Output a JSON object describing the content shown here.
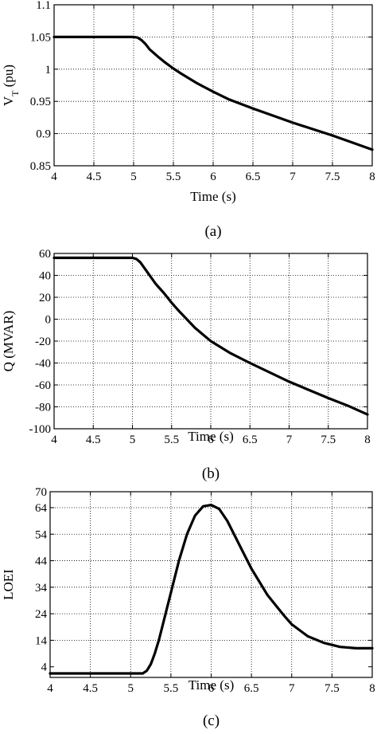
{
  "chart_data": [
    {
      "type": "line",
      "xlabel": "Time (s)",
      "ylabel": "V",
      "ylabel_sub": "T",
      "ylabel_suffix": " (pu)",
      "caption": "(a)",
      "xlim": [
        4,
        8
      ],
      "ylim": [
        0.85,
        1.1
      ],
      "x_ticks": [
        "4",
        "4.5",
        "5",
        "5.5",
        "6",
        "6.5",
        "7",
        "7.5",
        "8"
      ],
      "y_ticks": [
        "0.85",
        "0.9",
        "0.95",
        "1",
        "1.05",
        "1.1"
      ],
      "grid": true,
      "series": [
        {
          "x": [
            4.0,
            4.5,
            5.0,
            5.05,
            5.1,
            5.15,
            5.2,
            5.3,
            5.4,
            5.5,
            5.6,
            5.8,
            6.0,
            6.2,
            6.5,
            7.0,
            7.5,
            7.75,
            8.0
          ],
          "y": [
            1.05,
            1.05,
            1.05,
            1.049,
            1.045,
            1.039,
            1.031,
            1.02,
            1.01,
            1.001,
            0.993,
            0.978,
            0.965,
            0.953,
            0.939,
            0.917,
            0.897,
            0.886,
            0.875
          ]
        }
      ]
    },
    {
      "type": "line",
      "xlabel": "Time (s)",
      "ylabel": "Q (MVAR)",
      "caption": "(b)",
      "xlim": [
        4,
        8
      ],
      "ylim": [
        -100,
        60
      ],
      "x_ticks": [
        "4",
        "4.5",
        "5",
        "5.5",
        "6",
        "6.5",
        "7",
        "7.5",
        "8"
      ],
      "y_ticks": [
        "-100",
        "-80",
        "-60",
        "-40",
        "-20",
        "0",
        "20",
        "40",
        "60"
      ],
      "grid": true,
      "series": [
        {
          "x": [
            4.0,
            4.5,
            5.0,
            5.05,
            5.1,
            5.15,
            5.2,
            5.3,
            5.4,
            5.5,
            5.6,
            5.8,
            6.0,
            6.25,
            6.5,
            7.0,
            7.5,
            7.75,
            8.0
          ],
          "y": [
            56,
            56,
            56,
            55,
            52,
            47,
            42,
            32,
            24,
            15,
            7,
            -8,
            -20,
            -31,
            -40,
            -57,
            -72,
            -79,
            -87
          ]
        }
      ]
    },
    {
      "type": "line",
      "xlabel": "Time (s)",
      "ylabel": "LOEI",
      "caption": "(c)",
      "xlim": [
        4,
        8
      ],
      "ylim": [
        0,
        70
      ],
      "x_ticks": [
        "4",
        "4.5",
        "5",
        "5.5",
        "6",
        "6.5",
        "7",
        "7.5",
        "8"
      ],
      "y_ticks": [
        "4",
        "14",
        "24",
        "34",
        "44",
        "54",
        "64",
        "70"
      ],
      "grid": true,
      "series": [
        {
          "x": [
            4.0,
            4.5,
            5.0,
            5.15,
            5.2,
            5.25,
            5.3,
            5.35,
            5.4,
            5.5,
            5.6,
            5.7,
            5.8,
            5.9,
            6.0,
            6.1,
            6.2,
            6.3,
            6.4,
            6.5,
            6.7,
            6.9,
            7.0,
            7.2,
            7.4,
            7.6,
            7.8,
            8.0
          ],
          "y": [
            1.5,
            1.5,
            1.5,
            1.5,
            2.5,
            5,
            9,
            14,
            20,
            32,
            44,
            54,
            61,
            64.5,
            65,
            63.5,
            59,
            53,
            47,
            41,
            31,
            23.5,
            20,
            15.5,
            13,
            11.5,
            11,
            11
          ]
        }
      ]
    }
  ]
}
